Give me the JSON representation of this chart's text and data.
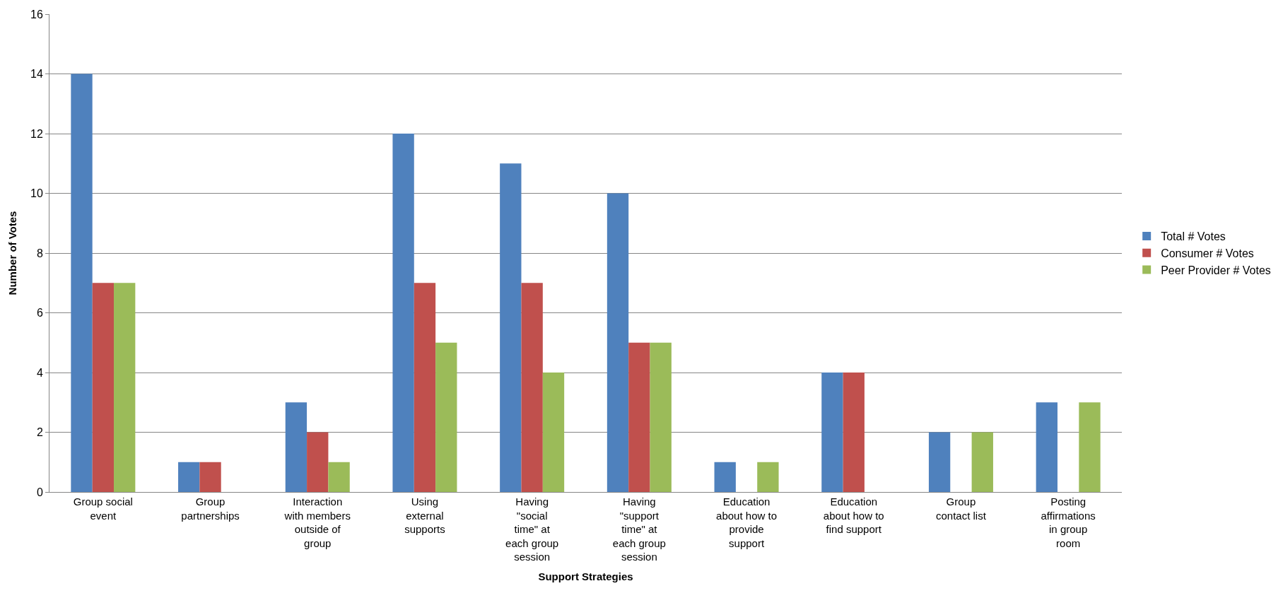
{
  "chart_data": {
    "type": "bar",
    "xlabel": "Support Strategies",
    "ylabel": "Number of Votes",
    "categories": [
      "Group social event",
      "Group partnerships",
      "Interaction with members outside of group",
      "Using external supports",
      "Having \"social time\" at each group session",
      "Having \"support time\" at each group session",
      "Education about how to provide support",
      "Education about how to find support",
      "Group contact list",
      "Posting affirmations in group room"
    ],
    "series": [
      {
        "name": "Total # Votes",
        "color": "#4f81bd",
        "values": [
          14,
          1,
          3,
          12,
          11,
          10,
          1,
          4,
          2,
          3
        ]
      },
      {
        "name": "Consumer # Votes",
        "color": "#c0504d",
        "values": [
          7,
          1,
          2,
          7,
          7,
          5,
          0,
          4,
          0,
          0
        ]
      },
      {
        "name": "Peer Provider # Votes",
        "color": "#9bbb59",
        "values": [
          7,
          0,
          1,
          5,
          4,
          5,
          1,
          0,
          2,
          3
        ]
      }
    ],
    "ylim": [
      0,
      16
    ],
    "yticks": [
      0,
      2,
      4,
      6,
      8,
      10,
      12,
      14,
      16
    ],
    "grid": "y",
    "legend": "right"
  }
}
